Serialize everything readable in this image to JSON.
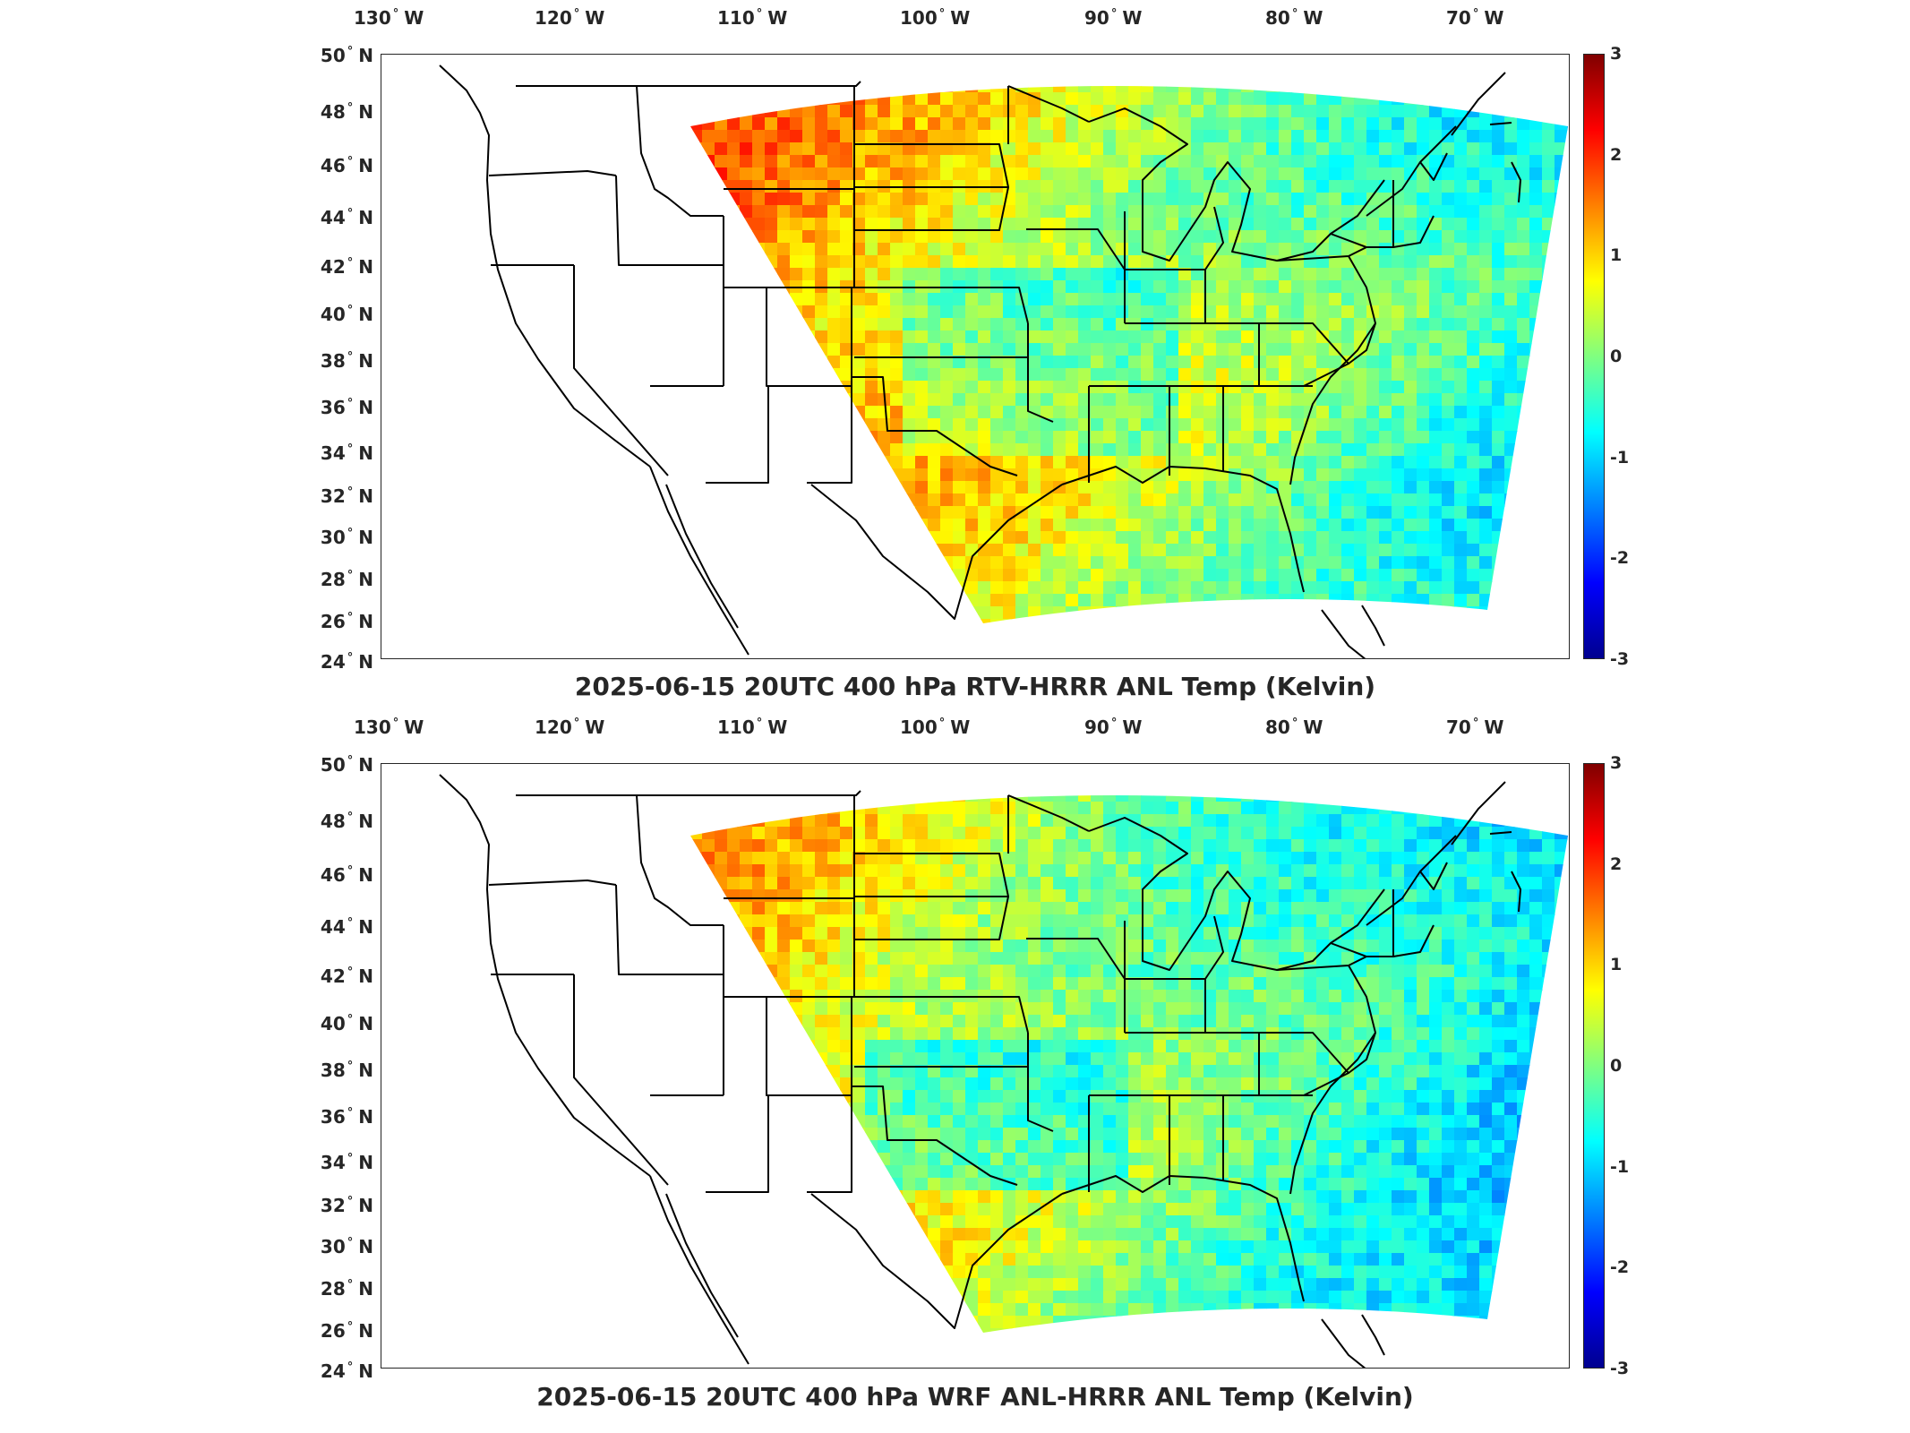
{
  "panels": [
    {
      "title": "2025-06-15 20UTC 400 hPa RTV-HRRR ANL Temp (Kelvin)",
      "mean_field": "warm_west"
    },
    {
      "title": "2025-06-15 20UTC 400 hPa WRF ANL-HRRR ANL Temp (Kelvin)",
      "mean_field": "cool_east"
    }
  ],
  "axes": {
    "lon_ticks": [
      "130",
      "120",
      "110",
      "100",
      "90",
      "80",
      "70"
    ],
    "lon_suffix": "W",
    "lat_ticks": [
      "50",
      "48",
      "46",
      "44",
      "42",
      "40",
      "38",
      "36",
      "34",
      "32",
      "30",
      "28",
      "26",
      "24"
    ],
    "lat_suffix": "N",
    "deg_symbol": "°"
  },
  "colorbar": {
    "ticks": [
      "3",
      "2",
      "1",
      "0",
      "-1",
      "-2",
      "-3"
    ],
    "range": [
      -3,
      3
    ],
    "colormap": "jet"
  }
}
